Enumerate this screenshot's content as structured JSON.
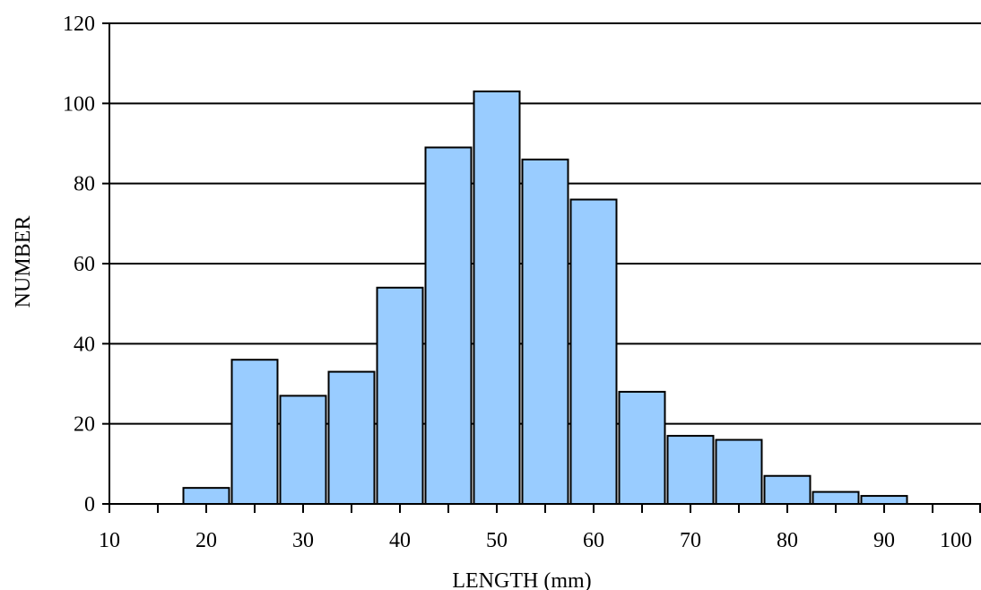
{
  "chart_data": {
    "type": "bar",
    "title": "",
    "xlabel": "LENGTH (mm)",
    "ylabel": "NUMBER",
    "ylim": [
      0,
      120
    ],
    "xlim": [
      10,
      100
    ],
    "grid": true,
    "legend": "none",
    "y_ticks": [
      "0",
      "20",
      "40",
      "60",
      "80",
      "100",
      "120"
    ],
    "x_ticks": [
      "10",
      "20",
      "30",
      "40",
      "50",
      "60",
      "70",
      "80",
      "90",
      "100"
    ],
    "bars": [
      {
        "x": 20,
        "value": 4
      },
      {
        "x": 25,
        "value": 36
      },
      {
        "x": 30,
        "value": 27
      },
      {
        "x": 35,
        "value": 33
      },
      {
        "x": 40,
        "value": 54
      },
      {
        "x": 45,
        "value": 89
      },
      {
        "x": 50,
        "value": 103
      },
      {
        "x": 55,
        "value": 86
      },
      {
        "x": 60,
        "value": 76
      },
      {
        "x": 65,
        "value": 28
      },
      {
        "x": 70,
        "value": 17
      },
      {
        "x": 75,
        "value": 16
      },
      {
        "x": 80,
        "value": 7
      },
      {
        "x": 85,
        "value": 3
      },
      {
        "x": 90,
        "value": 2
      }
    ],
    "bar_color": "#99ccff",
    "bar_edge_color": "#000000",
    "gridline_color": "#000000"
  }
}
